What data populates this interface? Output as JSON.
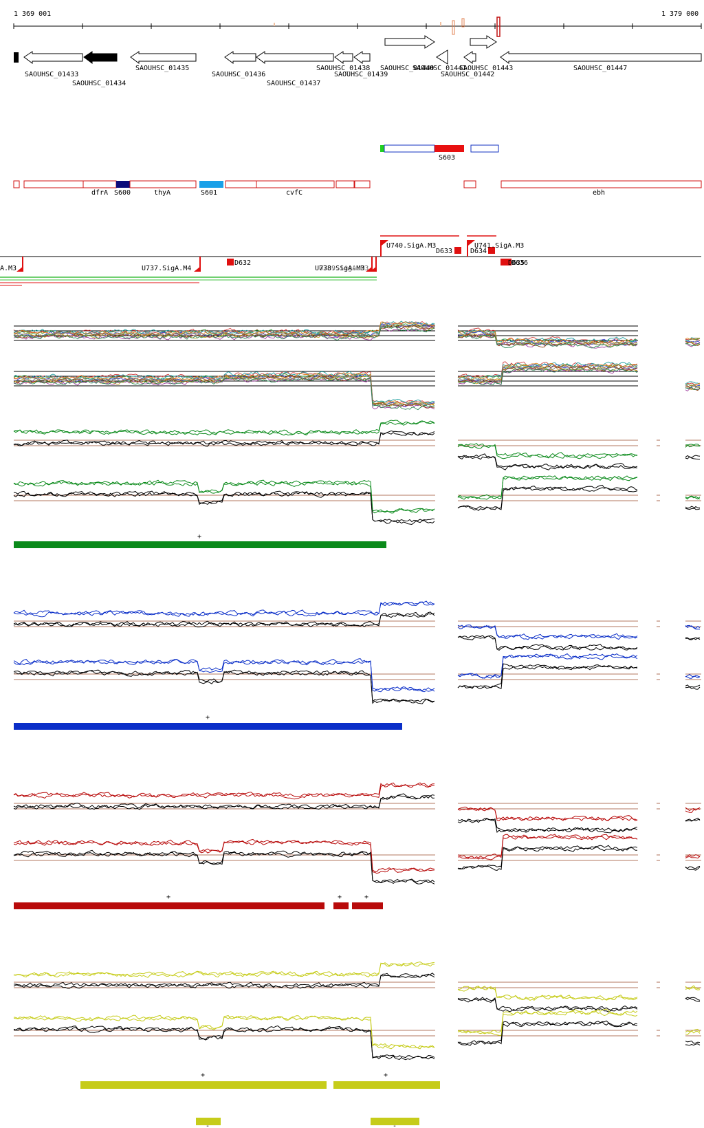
{
  "ruler": {
    "start_label": "1 369 001",
    "end_label": "1 379 000"
  },
  "genes": [
    {
      "label": "SAOUHSC_01433"
    },
    {
      "label": "SAOUHSC_01434"
    },
    {
      "label": "SAOUHSC_01435"
    },
    {
      "label": "SAOUHSC_01436"
    },
    {
      "label": "SAOUHSC_01437"
    },
    {
      "label": "SAOUHSC_01438"
    },
    {
      "label": "SAOUHSC_01439"
    },
    {
      "label": "SAOUHSC_01440"
    },
    {
      "label": "SAOUHSC_01441"
    },
    {
      "label": "SAOUHSC_01442"
    },
    {
      "label": "SAOUHSC_01443"
    },
    {
      "label": "SAOUHSC_01447"
    }
  ],
  "feature_labels": {
    "s603": "S603",
    "dfrA": "dfrA",
    "s600": "S600",
    "thyA": "thyA",
    "s601": "S601",
    "cvfC": "cvfC",
    "ebh": "ebh"
  },
  "promoters": {
    "m3_left": "A.M3",
    "u737": "U737.SigA.M4",
    "d632": "D632",
    "u738": "U738.SigA.M3",
    "u739": "U739.SigA.M3",
    "u740": "U740.SigA.M3",
    "d633": "D633",
    "u741": "U741.SigA.M3",
    "d634": "D634",
    "d635": "D635",
    "d636": "D636"
  },
  "strand_marks": {
    "green_plus": "+",
    "blue_plus": "+",
    "red_plus_1": "+",
    "red_plus_2": "+",
    "red_plus_3": "+",
    "yellow_plus_1": "+",
    "yellow_plus_2": "+",
    "yellow_minus_1": "-",
    "yellow_minus_2": "-"
  },
  "colors": {
    "green": "#0a8a1a",
    "blue": "#0a2ec8",
    "red": "#b80a0a",
    "yellow": "#c6cc1a",
    "navy": "#0c0c7a",
    "lightblue": "#1aa0e8",
    "annotation_red": "#d01010"
  }
}
